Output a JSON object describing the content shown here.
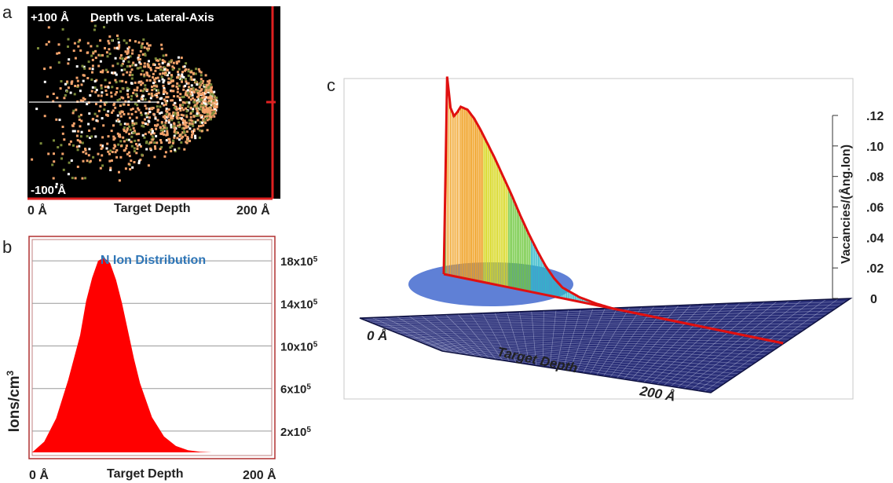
{
  "panel_labels": {
    "a": "a",
    "b": "b",
    "c": "c"
  },
  "chart_data": [
    {
      "panel": "a",
      "type": "scatter",
      "title": "Depth vs. Lateral-Axis",
      "y_top_label": "+100 Å",
      "y_bottom_label": "-100 Å",
      "x_start_label": "0 Å",
      "xlabel": "Target Depth",
      "x_end_label": "200 Å",
      "xlim": [
        0,
        200
      ],
      "ylim": [
        -100,
        100
      ],
      "colors": {
        "background": "#000000",
        "ions": "#f4a36b",
        "recoils": "#7a8a3a",
        "trace": "#ffffff",
        "frame": "#e02020"
      }
    },
    {
      "panel": "b",
      "type": "area",
      "title": "N Ion Distribution",
      "ylabel": "Ions/cm",
      "ylabel_sup": "3",
      "x_start_label": "0 Å",
      "xlabel": "Target Depth",
      "x_end_label": "200 Å",
      "xlim": [
        0,
        200
      ],
      "ylim": [
        0,
        2000000
      ],
      "y_ticks": [
        {
          "value": 200000,
          "base": "2x10",
          "exp": "5"
        },
        {
          "value": 600000,
          "base": "6x10",
          "exp": "5"
        },
        {
          "value": 1000000,
          "base": "10x10",
          "exp": "5"
        },
        {
          "value": 1400000,
          "base": "14x10",
          "exp": "5"
        },
        {
          "value": 1800000,
          "base": "18x10",
          "exp": "5"
        }
      ],
      "x": [
        0,
        10,
        20,
        30,
        40,
        45,
        50,
        55,
        60,
        65,
        70,
        75,
        80,
        85,
        90,
        100,
        110,
        120,
        130,
        140,
        150,
        200
      ],
      "values": [
        0,
        100000,
        320000,
        680000,
        1100000,
        1420000,
        1640000,
        1800000,
        1830000,
        1780000,
        1620000,
        1400000,
        1140000,
        880000,
        650000,
        330000,
        150000,
        60000,
        20000,
        5000,
        0,
        0
      ],
      "colors": {
        "fill": "#ff0000",
        "title": "#2e75b6"
      }
    },
    {
      "panel": "c",
      "type": "area",
      "projection": "3d",
      "zlabel": "Vacancies/(Ång.Ion)",
      "x_start_label": "0 Å",
      "xlabel": "Target Depth",
      "x_end_label": "200 Å",
      "z_ticks": [
        {
          "value": 0,
          "label": "0"
        },
        {
          "value": 0.02,
          "label": ".02"
        },
        {
          "value": 0.04,
          "label": ".04"
        },
        {
          "value": 0.06,
          "label": ".06"
        },
        {
          "value": 0.08,
          "label": ".08"
        },
        {
          "value": 0.1,
          "label": ".10"
        },
        {
          "value": 0.12,
          "label": ".12"
        }
      ],
      "zlim": [
        0,
        0.14
      ],
      "x": [
        0,
        2,
        4,
        6,
        8,
        10,
        14,
        18,
        22,
        26,
        30,
        35,
        40,
        45,
        50,
        55,
        60,
        65,
        70,
        80,
        90,
        100,
        200
      ],
      "values": [
        0,
        0.13,
        0.11,
        0.105,
        0.108,
        0.112,
        0.111,
        0.106,
        0.099,
        0.091,
        0.083,
        0.072,
        0.061,
        0.049,
        0.038,
        0.028,
        0.019,
        0.012,
        0.007,
        0.003,
        0.001,
        0,
        0
      ],
      "colors": {
        "plane": "#2a2f78",
        "plane_grid": "#c8cde8",
        "centerline": "#e01010"
      }
    }
  ]
}
